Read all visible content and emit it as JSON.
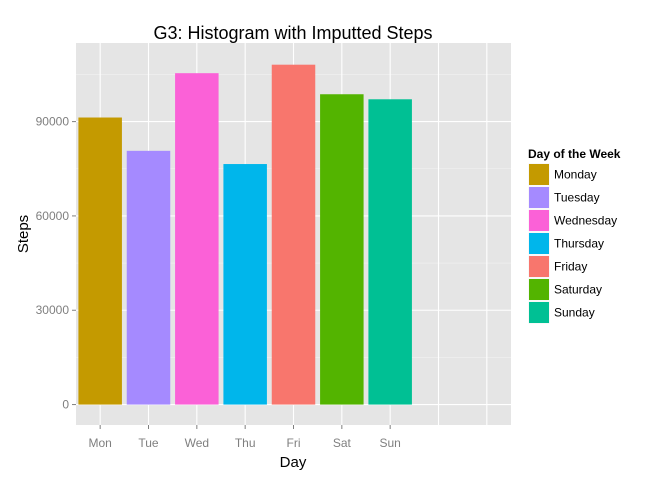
{
  "chart_data": {
    "type": "bar",
    "title": "G3: Histogram with Imputted Steps",
    "xlabel": "Day",
    "ylabel": "Steps",
    "categories": [
      "Mon",
      "Tue",
      "Wed",
      "Thu",
      "Fri",
      "Sat",
      "Sun"
    ],
    "values": [
      91300,
      80700,
      105400,
      76500,
      108100,
      98700,
      97100
    ],
    "ylim": [
      -6500,
      115000
    ],
    "yticks": [
      0,
      30000,
      60000,
      90000
    ],
    "ytick_labels": [
      "0",
      "30000",
      "60000",
      "90000"
    ],
    "x_slots": 9,
    "grid": true,
    "legend": {
      "title": "Day of the Week",
      "position": "right",
      "items": [
        "Monday",
        "Tuesday",
        "Wednesday",
        "Thursday",
        "Friday",
        "Saturday",
        "Sunday"
      ]
    },
    "colors": [
      "#c49a00",
      "#a58aff",
      "#fb61d7",
      "#00b6eb",
      "#f8766d",
      "#53b400",
      "#00c094"
    ],
    "panel_background": "#e5e5e5",
    "grid_color": "#ffffff"
  }
}
